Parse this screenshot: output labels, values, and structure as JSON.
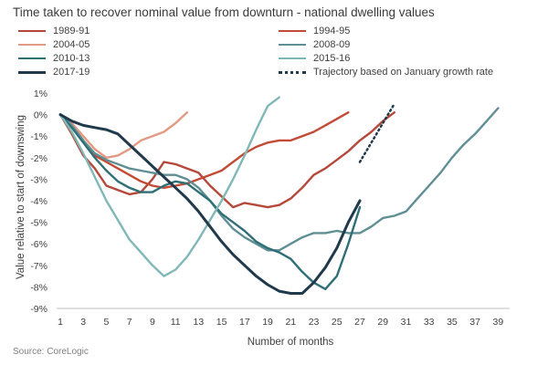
{
  "title": "Time taken to recover nominal value from downturn  - national dwelling values",
  "source": "Source: CoreLogic",
  "chart_data": {
    "type": "line",
    "xlabel": "Number of months",
    "ylabel": "Value relative to start of downswing",
    "xlim": [
      1,
      40
    ],
    "ylim": [
      -9,
      1
    ],
    "x_ticks": [
      "1",
      "3",
      "5",
      "7",
      "9",
      "11",
      "13",
      "15",
      "17",
      "19",
      "21",
      "23",
      "25",
      "27",
      "29",
      "31",
      "33",
      "35",
      "37",
      "39"
    ],
    "y_ticks": [
      "1%",
      "0%",
      "-1%",
      "-2%",
      "-3%",
      "-4%",
      "-5%",
      "-6%",
      "-7%",
      "-8%",
      "-9%"
    ],
    "grid": false,
    "legend": "top",
    "series": [
      {
        "name": "1989-91",
        "color": "#b5483a",
        "style": "solid",
        "x": [
          1,
          2,
          3,
          4,
          5,
          6,
          7,
          8,
          9,
          10,
          11,
          12,
          13,
          14,
          15,
          16,
          17,
          18,
          19,
          20,
          21,
          22,
          23,
          24,
          25,
          26,
          27,
          28,
          29,
          30
        ],
        "y": [
          0,
          -0.9,
          -1.9,
          -2.5,
          -3.3,
          -3.5,
          -3.7,
          -3.6,
          -3.0,
          -2.2,
          -2.3,
          -2.5,
          -2.7,
          -3.3,
          -3.8,
          -4.3,
          -4.1,
          -4.2,
          -4.3,
          -4.2,
          -3.9,
          -3.4,
          -2.8,
          -2.5,
          -2.1,
          -1.7,
          -1.2,
          -0.8,
          -0.3,
          0.1
        ]
      },
      {
        "name": "1994-95",
        "color": "#c24b36",
        "style": "solid",
        "x": [
          1,
          2,
          3,
          4,
          5,
          6,
          7,
          8,
          9,
          10,
          11,
          12,
          13,
          14,
          15,
          16,
          17,
          18,
          19,
          20,
          21,
          22,
          23,
          24,
          25,
          26
        ],
        "y": [
          0,
          -0.5,
          -1.2,
          -1.9,
          -2.2,
          -2.5,
          -2.8,
          -3.1,
          -3.3,
          -3.4,
          -3.3,
          -3.2,
          -3.0,
          -2.8,
          -2.6,
          -2.2,
          -1.8,
          -1.5,
          -1.3,
          -1.2,
          -1.2,
          -1.0,
          -0.8,
          -0.5,
          -0.2,
          0.1
        ]
      },
      {
        "name": "2004-05",
        "color": "#e39a83",
        "style": "solid",
        "x": [
          1,
          2,
          3,
          4,
          5,
          6,
          7,
          8,
          9,
          10,
          11,
          12
        ],
        "y": [
          0,
          -0.4,
          -1.0,
          -1.6,
          -2.0,
          -1.9,
          -1.6,
          -1.2,
          -1.0,
          -0.8,
          -0.4,
          0.1
        ]
      },
      {
        "name": "2008-09",
        "color": "#5f8f95",
        "style": "solid",
        "x": [
          1,
          2,
          3,
          4,
          5,
          6,
          7,
          8,
          9,
          10,
          11,
          12,
          13,
          14,
          15,
          16,
          17,
          18,
          19,
          20,
          21,
          22,
          23,
          24,
          25,
          26,
          27,
          28,
          29,
          30,
          31,
          32,
          33,
          34,
          35,
          36,
          37,
          38,
          39
        ],
        "y": [
          0,
          -0.5,
          -1.2,
          -1.8,
          -2.1,
          -2.3,
          -2.5,
          -2.6,
          -2.7,
          -2.8,
          -2.8,
          -3.0,
          -3.4,
          -4.0,
          -4.7,
          -5.3,
          -5.7,
          -6.0,
          -6.3,
          -6.3,
          -6.0,
          -5.7,
          -5.5,
          -5.5,
          -5.4,
          -5.5,
          -5.5,
          -5.2,
          -4.8,
          -4.7,
          -4.5,
          -3.9,
          -3.3,
          -2.7,
          -2.0,
          -1.4,
          -0.9,
          -0.3,
          0.3
        ]
      },
      {
        "name": "2010-13",
        "color": "#2f6f76",
        "style": "solid",
        "x": [
          1,
          2,
          3,
          4,
          5,
          6,
          7,
          8,
          9,
          10,
          11,
          12,
          13,
          14,
          15,
          16,
          17,
          18,
          19,
          20,
          21,
          22,
          23,
          24,
          25,
          26,
          27
        ],
        "y": [
          0,
          -0.6,
          -1.3,
          -2.0,
          -2.6,
          -3.1,
          -3.4,
          -3.6,
          -3.6,
          -3.3,
          -3.1,
          -3.2,
          -3.6,
          -4.0,
          -4.6,
          -5.0,
          -5.4,
          -5.9,
          -6.2,
          -6.4,
          -6.7,
          -7.3,
          -7.8,
          -8.1,
          -7.5,
          -6.0,
          -4.3
        ]
      },
      {
        "name": "2015-16",
        "color": "#7fb8b6",
        "style": "solid",
        "x": [
          1,
          2,
          3,
          4,
          5,
          6,
          7,
          8,
          9,
          10,
          11,
          12,
          13,
          14,
          15,
          16,
          17,
          18,
          19,
          20
        ],
        "y": [
          0,
          -0.8,
          -1.8,
          -2.9,
          -4.0,
          -4.9,
          -5.8,
          -6.4,
          -7.0,
          -7.5,
          -7.2,
          -6.6,
          -5.8,
          -4.9,
          -4.0,
          -3.0,
          -1.9,
          -0.7,
          0.4,
          0.8
        ]
      },
      {
        "name": "2017-19",
        "color": "#203a4c",
        "style": "solid",
        "x": [
          1,
          2,
          3,
          4,
          5,
          6,
          7,
          8,
          9,
          10,
          11,
          12,
          13,
          14,
          15,
          16,
          17,
          18,
          19,
          20,
          21,
          22,
          23,
          24,
          25,
          26,
          27
        ],
        "y": [
          0,
          -0.3,
          -0.5,
          -0.6,
          -0.7,
          -0.9,
          -1.4,
          -1.9,
          -2.4,
          -2.9,
          -3.4,
          -3.9,
          -4.5,
          -5.2,
          -5.9,
          -6.5,
          -7.0,
          -7.5,
          -7.9,
          -8.2,
          -8.3,
          -8.3,
          -7.8,
          -7.1,
          -6.2,
          -5.0,
          -4.0
        ]
      },
      {
        "name": "Trajectory based on January growth rate",
        "color": "#203a4c",
        "style": "dotted",
        "x": [
          27,
          28,
          29,
          30
        ],
        "y": [
          -2.2,
          -1.3,
          -0.4,
          0.5
        ]
      }
    ]
  }
}
